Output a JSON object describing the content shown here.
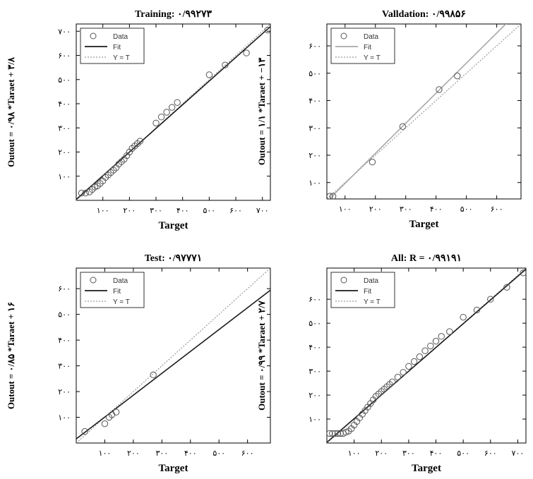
{
  "chart_data": [
    {
      "type": "scatter",
      "title": "Training: ۰/۹۹۲۷۳",
      "xlabel": "Target",
      "ylabel": "Outout = ۰/۹۸ *Taraet + ۳/۸",
      "xlim": [
        0,
        730
      ],
      "ylim": [
        0,
        730
      ],
      "xticks": [
        100,
        200,
        300,
        400,
        500,
        600,
        700
      ],
      "xtick_labels": [
        "۱۰۰",
        "۲۰۰",
        "۳۰۰",
        "۴۰۰",
        "۵۰۰",
        "۶۰۰",
        "۷۰۰"
      ],
      "yticks": [
        100,
        200,
        300,
        400,
        500,
        600,
        700
      ],
      "ytick_labels": [
        "۱۰۰",
        "۲۰۰",
        "۳۰۰",
        "۴۰۰",
        "۵۰۰",
        "۶۰۰",
        "۷۰۰"
      ],
      "legend": {
        "position": "top-left",
        "entries": [
          "Data",
          "Fit",
          "Y = T"
        ]
      },
      "fit": {
        "slope": 0.98,
        "intercept": 3.8,
        "color": "#1a1a1a"
      },
      "series": [
        {
          "name": "Data",
          "x": [
            20,
            35,
            50,
            60,
            70,
            80,
            90,
            100,
            110,
            120,
            130,
            140,
            150,
            160,
            170,
            180,
            190,
            200,
            210,
            220,
            230,
            240,
            300,
            320,
            340,
            360,
            380,
            500,
            560,
            640,
            720
          ],
          "y": [
            30,
            30,
            35,
            45,
            55,
            60,
            70,
            80,
            95,
            105,
            115,
            125,
            135,
            150,
            160,
            170,
            185,
            200,
            215,
            225,
            235,
            245,
            320,
            345,
            365,
            385,
            405,
            520,
            560,
            610,
            705
          ]
        }
      ]
    },
    {
      "type": "scatter",
      "title": "Valldation: ۰/۹۹۸۵۶",
      "xlabel": "Target",
      "ylabel": "Outout = ۱/۱ *Taraet + −۱۳",
      "xlim": [
        40,
        680
      ],
      "ylim": [
        40,
        680
      ],
      "xticks": [
        100,
        200,
        300,
        400,
        500,
        600
      ],
      "xtick_labels": [
        "۱۰۰",
        "۲۰۰",
        "۳۰۰",
        "۴۰۰",
        "۵۰۰",
        "۶۰۰"
      ],
      "yticks": [
        100,
        200,
        300,
        400,
        500,
        600
      ],
      "ytick_labels": [
        "۱۰۰",
        "۲۰۰",
        "۳۰۰",
        "۴۰۰",
        "۵۰۰",
        "۶۰۰"
      ],
      "legend": {
        "position": "top-left",
        "entries": [
          "Data",
          "Fit",
          "Y = T"
        ]
      },
      "fit": {
        "slope": 1.1,
        "intercept": -13,
        "color": "#a8a8a8"
      },
      "series": [
        {
          "name": "Data",
          "x": [
            50,
            60,
            190,
            290,
            410,
            470
          ],
          "y": [
            50,
            50,
            175,
            305,
            440,
            490
          ]
        }
      ]
    },
    {
      "type": "scatter",
      "title": "Test: ۰/۹۷۷۷۱",
      "xlabel": "Target",
      "ylabel": "Outout = ۰/۸۵ *Taraet + ۱۶",
      "xlim": [
        0,
        680
      ],
      "ylim": [
        0,
        680
      ],
      "xticks": [
        100,
        200,
        300,
        400,
        500,
        600
      ],
      "xtick_labels": [
        "۱۰۰",
        "۲۰۰",
        "۳۰۰",
        "۴۰۰",
        "۵۰۰",
        "۶۰۰"
      ],
      "yticks": [
        100,
        200,
        300,
        400,
        500,
        600
      ],
      "ytick_labels": [
        "۱۰۰",
        "۲۰۰",
        "۳۰۰",
        "۴۰۰",
        "۵۰۰",
        "۶۰۰"
      ],
      "legend": {
        "position": "top-left",
        "entries": [
          "Data",
          "Fit",
          "Y = T"
        ]
      },
      "fit": {
        "slope": 0.85,
        "intercept": 16,
        "color": "#1a1a1a"
      },
      "series": [
        {
          "name": "Data",
          "x": [
            30,
            100,
            115,
            125,
            140,
            270
          ],
          "y": [
            45,
            75,
            100,
            110,
            120,
            265
          ]
        }
      ]
    },
    {
      "type": "scatter",
      "title": "All: R = ۰/۹۹۱۹۱",
      "xlabel": "Target",
      "ylabel": "Outout = ۰/۹۹ *Taraet + ۲/۷",
      "xlim": [
        0,
        730
      ],
      "ylim": [
        0,
        730
      ],
      "xticks": [
        100,
        200,
        300,
        400,
        500,
        600,
        700
      ],
      "xtick_labels": [
        "۱۰۰",
        "۲۰۰",
        "۳۰۰",
        "۴۰۰",
        "۵۰۰",
        "۶۰۰",
        "۷۰۰"
      ],
      "yticks": [
        100,
        200,
        300,
        400,
        500,
        600
      ],
      "ytick_labels": [
        "۱۰۰",
        "۲۰۰",
        "۳۰۰",
        "۴۰۰",
        "۵۰۰",
        "۶۰۰"
      ],
      "legend": {
        "position": "top-left",
        "entries": [
          "Data",
          "Fit",
          "Y = T"
        ]
      },
      "fit": {
        "slope": 0.99,
        "intercept": 2.7,
        "color": "#1a1a1a"
      },
      "series": [
        {
          "name": "Data",
          "x": [
            10,
            20,
            30,
            40,
            50,
            60,
            70,
            80,
            90,
            100,
            110,
            120,
            130,
            140,
            150,
            160,
            170,
            180,
            190,
            200,
            210,
            220,
            230,
            240,
            260,
            280,
            300,
            320,
            340,
            360,
            380,
            400,
            420,
            450,
            500,
            550,
            600,
            660,
            720
          ],
          "y": [
            40,
            40,
            40,
            40,
            40,
            40,
            45,
            50,
            60,
            75,
            90,
            105,
            120,
            135,
            150,
            165,
            180,
            195,
            205,
            215,
            225,
            235,
            245,
            255,
            275,
            295,
            320,
            340,
            360,
            385,
            405,
            425,
            445,
            465,
            525,
            555,
            600,
            650,
            710
          ]
        }
      ]
    }
  ]
}
